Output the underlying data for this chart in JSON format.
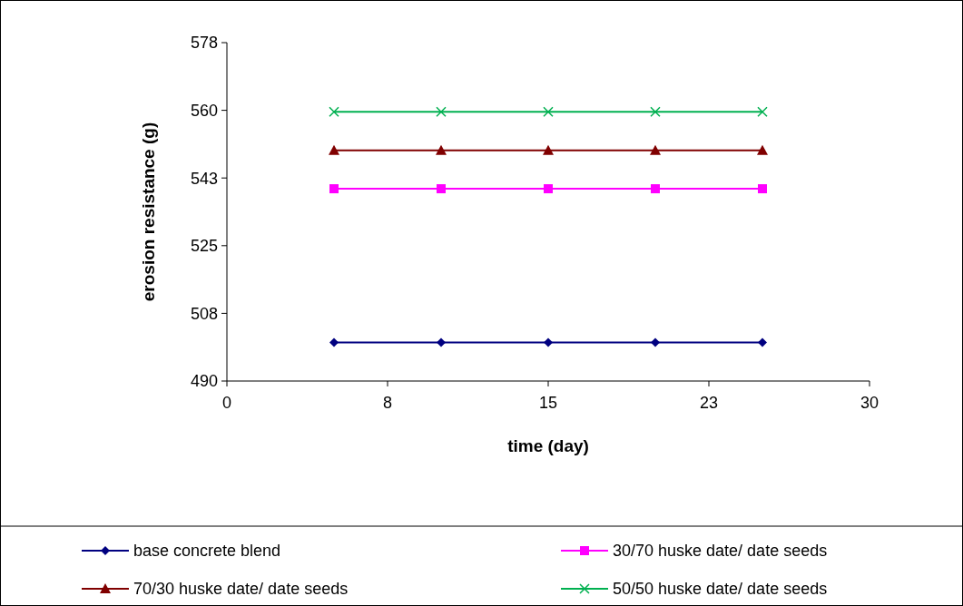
{
  "chart_data": {
    "type": "line",
    "xlabel": "time (day)",
    "ylabel": "erosion resistance (g)",
    "x": [
      5,
      10,
      15,
      20,
      25
    ],
    "series": [
      {
        "name": "base concrete blend",
        "color": "#000080",
        "marker": "diamond",
        "values": [
          500,
          500,
          500,
          500,
          500
        ]
      },
      {
        "name": "30/70 huske date/ date seeds",
        "color": "#ff00ff",
        "marker": "square",
        "values": [
          540,
          540,
          540,
          540,
          540
        ]
      },
      {
        "name": "70/30 huske date/ date seeds",
        "color": "#800000",
        "marker": "triangle",
        "values": [
          550,
          550,
          550,
          550,
          550
        ]
      },
      {
        "name": "50/50 huske date/ date seeds",
        "color": "#00b050",
        "marker": "cross",
        "values": [
          560,
          560,
          560,
          560,
          560
        ]
      }
    ],
    "xlim": [
      0,
      30
    ],
    "xticks": [
      0,
      {
        "value": 7.5,
        "label": "8"
      },
      15,
      {
        "value": 22.5,
        "label": "23"
      },
      30
    ],
    "ylim": [
      490,
      578
    ],
    "yticks": [
      490,
      {
        "value": 507.6,
        "label": "508"
      },
      {
        "value": 525.2,
        "label": "525"
      },
      {
        "value": 542.8,
        "label": "543"
      },
      {
        "value": 560.4,
        "label": "560"
      },
      578
    ],
    "grid": false,
    "legend": "bottom"
  }
}
